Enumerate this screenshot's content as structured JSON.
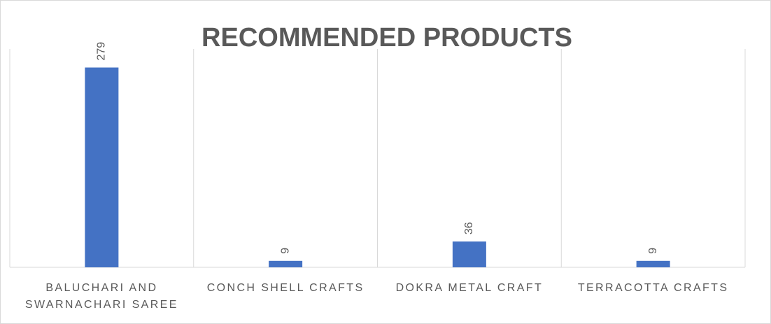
{
  "chart_data": {
    "type": "bar",
    "title": "RECOMMENDED PRODUCTS",
    "categories": [
      "BALUCHARI AND SWARNACHARI SAREE",
      "CONCH SHELL CRAFTS",
      "DOKRA METAL CRAFT",
      "TERRACOTTA CRAFTS"
    ],
    "values": [
      279,
      9,
      36,
      9
    ],
    "color": "#4472c4",
    "ylim": [
      0,
      300
    ]
  }
}
